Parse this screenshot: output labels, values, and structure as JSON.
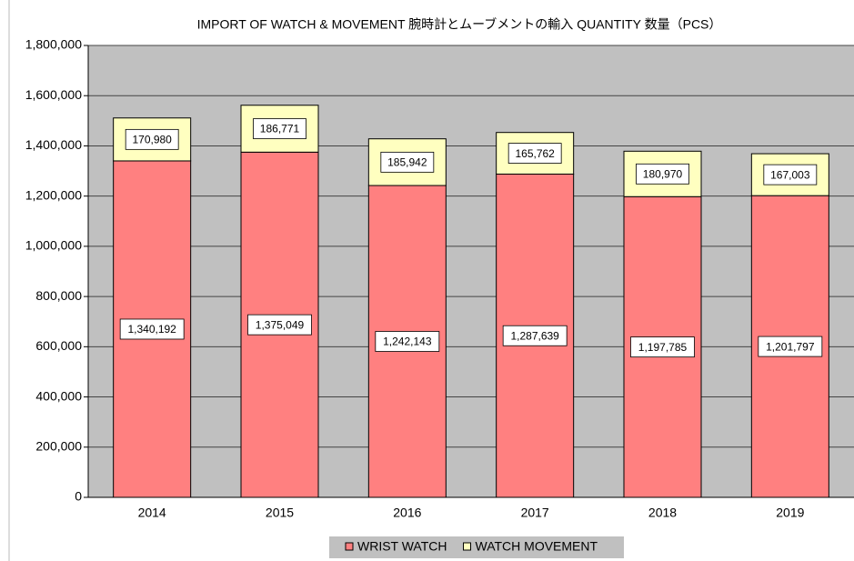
{
  "chart_data": {
    "type": "stacked_bar",
    "title": "IMPORT OF WATCH & MOVEMENT  腕時計とムーブメントの輸入  QUANTITY  数量（PCS）",
    "categories": [
      "2014",
      "2015",
      "2016",
      "2017",
      "2018",
      "2019"
    ],
    "series": [
      {
        "name": "WRIST WATCH",
        "color": "#ff8080",
        "values": [
          1340192,
          1375049,
          1242143,
          1287639,
          1197785,
          1201797
        ],
        "value_labels": [
          "1,340,192",
          "1,375,049",
          "1,242,143",
          "1,287,639",
          "1,197,785",
          "1,201,797"
        ]
      },
      {
        "name": "WATCH MOVEMENT",
        "color": "#ffffc0",
        "values": [
          170980,
          186771,
          185942,
          165762,
          180970,
          167003
        ],
        "value_labels": [
          "170,980",
          "186,771",
          "185,942",
          "165,762",
          "180,970",
          "167,003"
        ]
      }
    ],
    "ylim": [
      0,
      1800000
    ],
    "yticks": [
      0,
      {
        "value": 200000,
        "label": "200,000"
      },
      {
        "value": 400000,
        "label": "400,000"
      },
      {
        "value": 600000,
        "label": "600,000"
      },
      {
        "value": 800000,
        "label": "800,000"
      },
      {
        "value": 1000000,
        "label": "1,000,000"
      },
      {
        "value": 1200000,
        "label": "1,200,000"
      },
      {
        "value": 1400000,
        "label": "1,400,000"
      },
      {
        "value": 1600000,
        "label": "1,600,000"
      },
      {
        "value": 1800000,
        "label": "1,800,000"
      }
    ],
    "grid": true,
    "legend": "bottom"
  }
}
